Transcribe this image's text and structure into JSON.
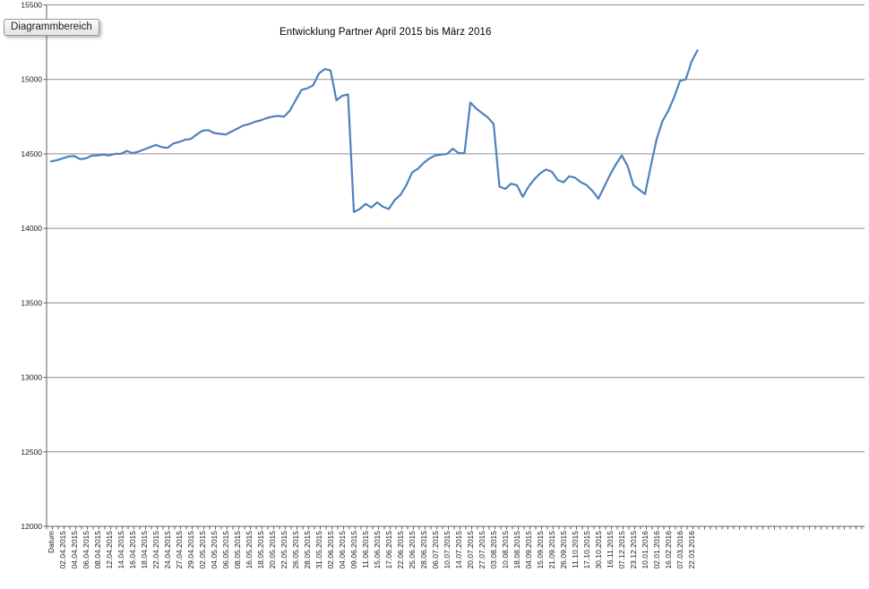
{
  "tooltip": {
    "label": "Diagrammbereich"
  },
  "colors": {
    "series_line": "#4F81BD",
    "gridline": "#8f8f8f",
    "axis": "#5f5f5f",
    "label_text": "#1a1a1a",
    "background": "#ffffff"
  },
  "chart_data": {
    "type": "line",
    "title": "Entwicklung Partner April 2015 bis März 2016",
    "xlabel": "",
    "ylabel": "",
    "ylim": [
      12000,
      15500
    ],
    "yticks": [
      12000,
      12500,
      13000,
      13500,
      14000,
      14500,
      15000,
      15500
    ],
    "grid": true,
    "legend_position": "none",
    "x_label_rotation_deg": -90,
    "x_unit_note": "category index; visible labels sit at even indices (every 2nd category)",
    "categories": [
      "Datum",
      "02.04.2015",
      "04.04.2015",
      "06.04.2015",
      "08.04.2015",
      "12.04.2015",
      "14.04.2015",
      "16.04.2015",
      "18.04.2015",
      "22.04.2015",
      "24.04.2015",
      "27.04.2015",
      "29.04.2015",
      "02.05.2015",
      "04.05.2015",
      "06.05.2015",
      "08.05.2015",
      "16.05.2015",
      "18.05.2015",
      "20.05.2015",
      "22.05.2015",
      "26.05.2015",
      "28.05.2015",
      "31.05.2015",
      "02.06.2015",
      "04.06.2015",
      "09.06.2015",
      "11.06.2015",
      "15.06.2015",
      "17.06.2015",
      "22.06.2015",
      "25.06.2015",
      "28.06.2015",
      "06.07.2015",
      "10.07.2015",
      "14.07.2015",
      "20.07.2015",
      "27.07.2015",
      "03.08.2015",
      "10.08.2015",
      "18.08.2015",
      "04.09.2015",
      "15.09.2015",
      "21.09.2015",
      "26.09.2015",
      "11.10.2015",
      "17.10.2015",
      "30.10.2015",
      "16.11.2015",
      "07.12.2015",
      "23.12.2015",
      "10.01.2016",
      "02.01.2016",
      "16.02.2016",
      "07.03.2016",
      "22.03.2016"
    ],
    "series": [
      {
        "color": "#4F81BD",
        "points": [
          [
            0,
            14450
          ],
          [
            1,
            14458
          ],
          [
            2,
            14470
          ],
          [
            3,
            14483
          ],
          [
            4,
            14485
          ],
          [
            5,
            14465
          ],
          [
            6,
            14470
          ],
          [
            7,
            14488
          ],
          [
            8,
            14490
          ],
          [
            9,
            14495
          ],
          [
            10,
            14490
          ],
          [
            11,
            14500
          ],
          [
            12,
            14500
          ],
          [
            13,
            14520
          ],
          [
            14,
            14505
          ],
          [
            15,
            14515
          ],
          [
            16,
            14530
          ],
          [
            17,
            14545
          ],
          [
            18,
            14560
          ],
          [
            19,
            14545
          ],
          [
            20,
            14540
          ],
          [
            21,
            14570
          ],
          [
            22,
            14580
          ],
          [
            23,
            14595
          ],
          [
            24,
            14600
          ],
          [
            25,
            14630
          ],
          [
            26,
            14655
          ],
          [
            27,
            14660
          ],
          [
            28,
            14640
          ],
          [
            29,
            14635
          ],
          [
            30,
            14630
          ],
          [
            31,
            14650
          ],
          [
            32,
            14670
          ],
          [
            33,
            14690
          ],
          [
            34,
            14700
          ],
          [
            35,
            14715
          ],
          [
            36,
            14725
          ],
          [
            37,
            14740
          ],
          [
            38,
            14750
          ],
          [
            39,
            14755
          ],
          [
            40,
            14750
          ],
          [
            41,
            14790
          ],
          [
            42,
            14860
          ],
          [
            43,
            14930
          ],
          [
            44,
            14940
          ],
          [
            45,
            14960
          ],
          [
            46,
            15040
          ],
          [
            47,
            15070
          ],
          [
            48,
            15060
          ],
          [
            49,
            14860
          ],
          [
            50,
            14890
          ],
          [
            51,
            14900
          ],
          [
            52,
            14110
          ],
          [
            53,
            14130
          ],
          [
            54,
            14165
          ],
          [
            55,
            14140
          ],
          [
            56,
            14175
          ],
          [
            57,
            14145
          ],
          [
            58,
            14130
          ],
          [
            59,
            14190
          ],
          [
            60,
            14225
          ],
          [
            61,
            14290
          ],
          [
            62,
            14375
          ],
          [
            63,
            14400
          ],
          [
            64,
            14440
          ],
          [
            65,
            14470
          ],
          [
            66,
            14490
          ],
          [
            67,
            14495
          ],
          [
            68,
            14500
          ],
          [
            69,
            14535
          ],
          [
            70,
            14505
          ],
          [
            71,
            14505
          ],
          [
            72,
            14845
          ],
          [
            73,
            14805
          ],
          [
            74,
            14775
          ],
          [
            75,
            14745
          ],
          [
            76,
            14700
          ],
          [
            77,
            14280
          ],
          [
            78,
            14265
          ],
          [
            79,
            14300
          ],
          [
            80,
            14290
          ],
          [
            81,
            14212
          ],
          [
            82,
            14280
          ],
          [
            83,
            14330
          ],
          [
            84,
            14370
          ],
          [
            85,
            14395
          ],
          [
            86,
            14380
          ],
          [
            87,
            14325
          ],
          [
            88,
            14310
          ],
          [
            89,
            14350
          ],
          [
            90,
            14340
          ],
          [
            91,
            14310
          ],
          [
            92,
            14290
          ],
          [
            93,
            14250
          ],
          [
            94,
            14200
          ],
          [
            95,
            14280
          ],
          [
            96,
            14360
          ],
          [
            97,
            14430
          ],
          [
            98,
            14490
          ],
          [
            99,
            14420
          ],
          [
            100,
            14290
          ],
          [
            101,
            14260
          ],
          [
            102,
            14230
          ],
          [
            103,
            14420
          ],
          [
            104,
            14600
          ],
          [
            105,
            14720
          ],
          [
            106,
            14790
          ],
          [
            107,
            14880
          ],
          [
            108,
            14990
          ],
          [
            109,
            15000
          ],
          [
            110,
            15120
          ],
          [
            111,
            15195
          ]
        ]
      }
    ]
  }
}
